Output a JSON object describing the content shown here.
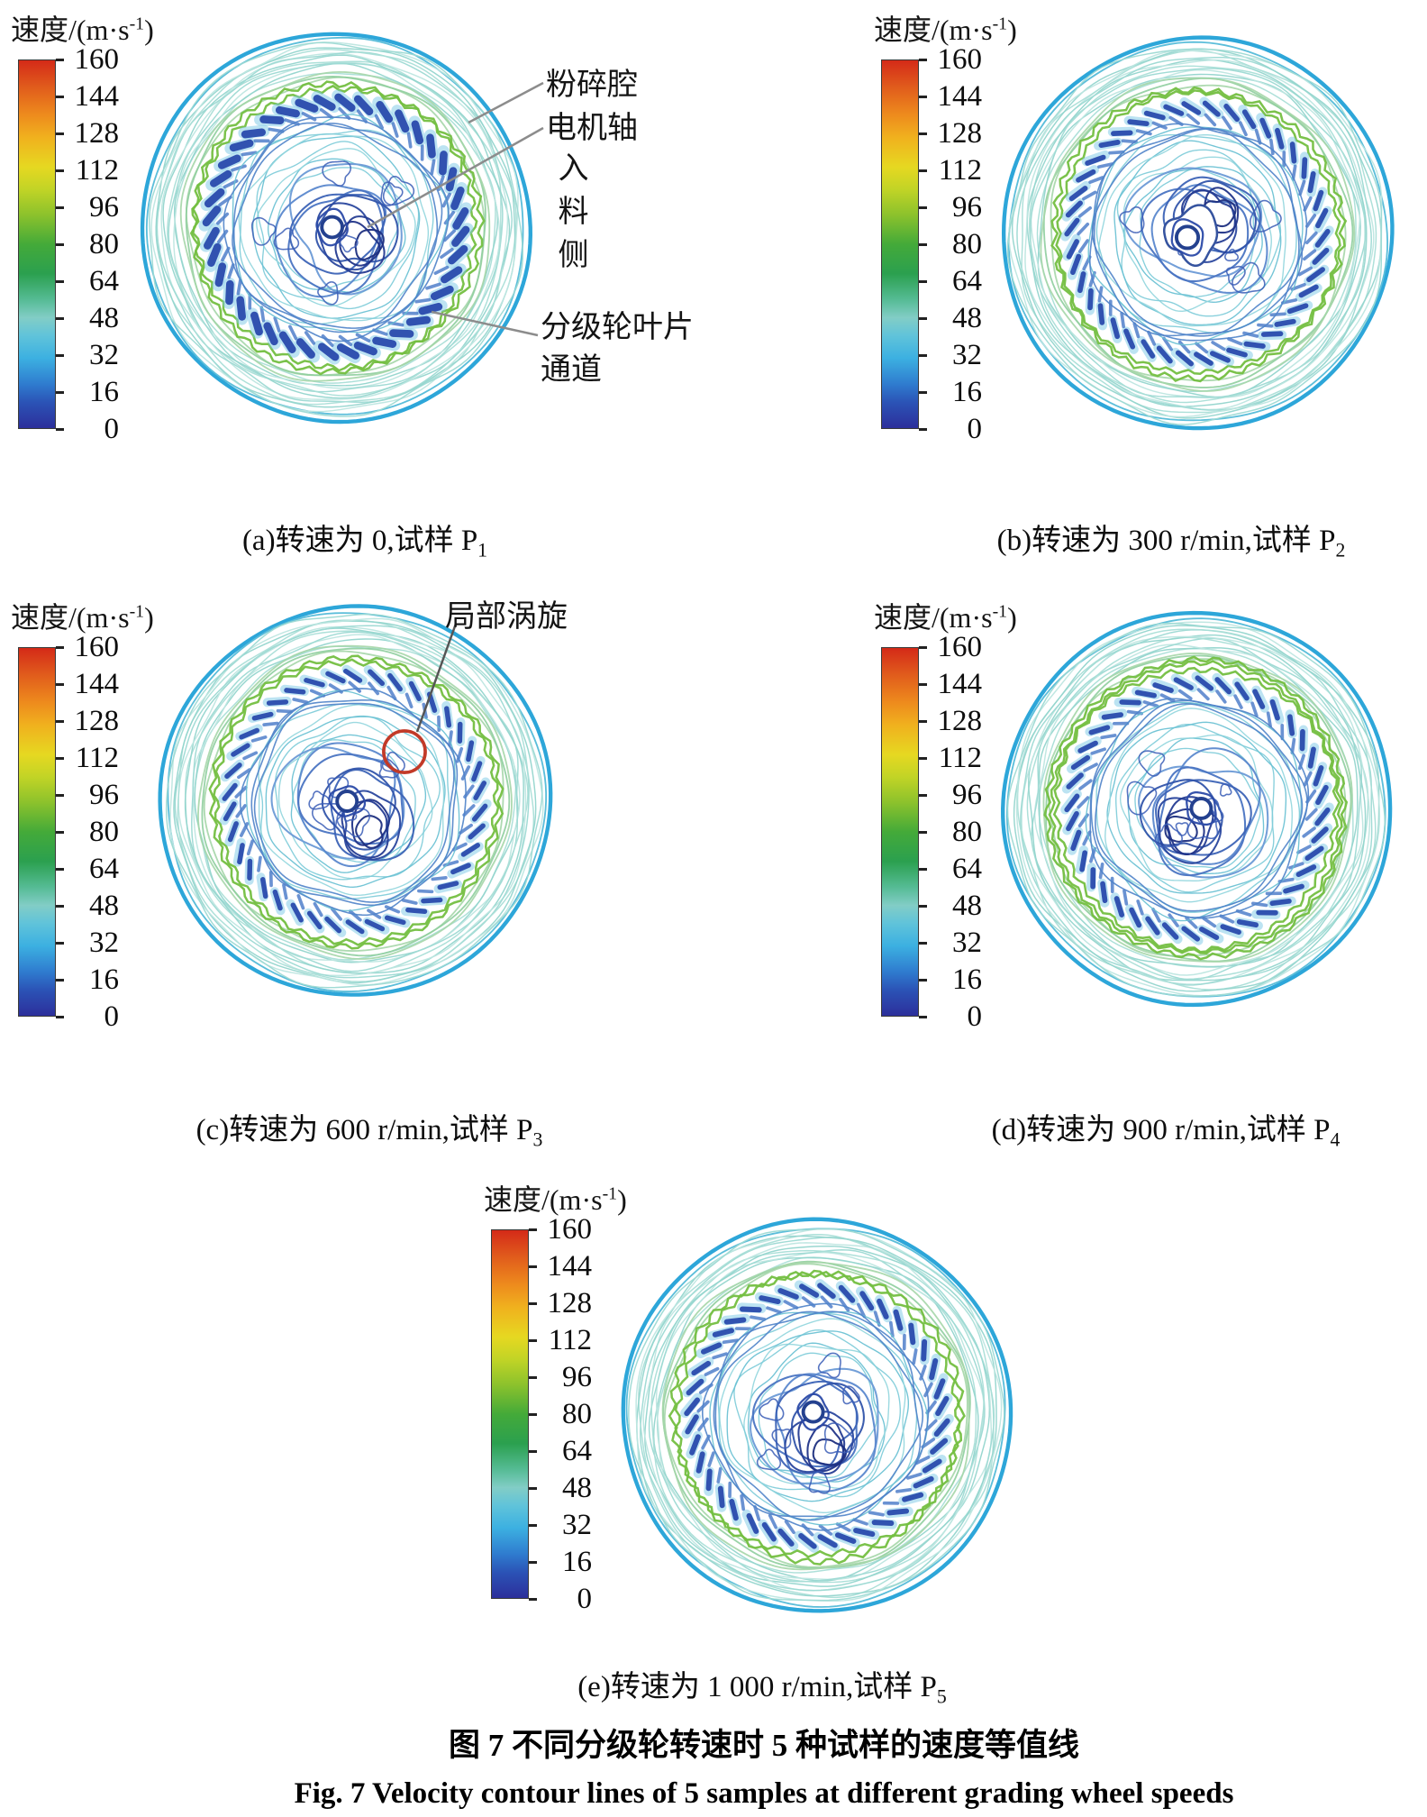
{
  "figure": {
    "caption_zh": "图 7  不同分级轮转速时 5 种试样的速度等值线",
    "caption_en": "Fig. 7   Velocity contour lines of 5 samples at different grading wheel speeds"
  },
  "colorbar": {
    "label_prefix": "速度/(m·s",
    "label_sup": "-1",
    "label_suffix": ")",
    "ticks": [
      "160",
      "144",
      "128",
      "112",
      "96",
      "80",
      "64",
      "48",
      "32",
      "16",
      "0"
    ]
  },
  "panels": [
    {
      "key": "a",
      "caption_prefix": "(a)转速为 0,试样 P",
      "caption_sub": "1"
    },
    {
      "key": "b",
      "caption_prefix": "(b)转速为 300 r/min,试样 P",
      "caption_sub": "2"
    },
    {
      "key": "c",
      "caption_prefix": "(c)转速为 600 r/min,试样 P",
      "caption_sub": "3",
      "annotation": "局部涡旋"
    },
    {
      "key": "d",
      "caption_prefix": "(d)转速为 900 r/min,试样 P",
      "caption_sub": "4"
    },
    {
      "key": "e",
      "caption_prefix": "(e)转速为 1 000 r/min,试样 P",
      "caption_sub": "5"
    }
  ],
  "panel_a_annotations": {
    "crushing_chamber": "粉碎腔",
    "motor_shaft": "电机轴",
    "feed_side": "入料侧",
    "blade_channel_line1": "分级轮叶片",
    "blade_channel_line2": "通道"
  },
  "chart_data": {
    "type": "contour",
    "title": "图 7 不同分级轮转速时 5 种试样的速度等值线 / Fig. 7 Velocity contour lines of 5 samples at different grading wheel speeds",
    "colorbar": {
      "label": "速度/(m·s⁻¹)",
      "unit": "m·s⁻¹",
      "range": [
        0,
        160
      ],
      "tick_step": 16,
      "ticks": [
        160,
        144,
        128,
        112,
        96,
        80,
        64,
        48,
        32,
        16,
        0
      ],
      "color_order_top_to_bottom": [
        "red",
        "orange",
        "yellow",
        "yellow-green",
        "green",
        "teal",
        "cyan",
        "sky-blue",
        "blue",
        "dark-blue"
      ]
    },
    "panels": [
      {
        "label": "(a)",
        "grading_wheel_speed_r_min": 0,
        "sample": "P1",
        "annotations": [
          "粉碎腔",
          "电机轴",
          "入料侧",
          "分级轮叶片通道"
        ]
      },
      {
        "label": "(b)",
        "grading_wheel_speed_r_min": 300,
        "sample": "P2",
        "annotations": []
      },
      {
        "label": "(c)",
        "grading_wheel_speed_r_min": 600,
        "sample": "P3",
        "annotations": [
          "局部涡旋"
        ]
      },
      {
        "label": "(d)",
        "grading_wheel_speed_r_min": 900,
        "sample": "P4",
        "annotations": []
      },
      {
        "label": "(e)",
        "grading_wheel_speed_r_min": 1000,
        "sample": "P5",
        "annotations": []
      }
    ]
  }
}
